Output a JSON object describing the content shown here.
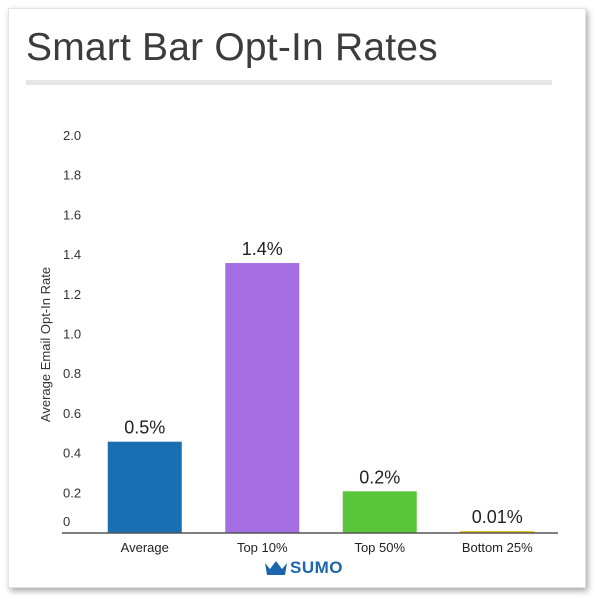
{
  "chart_data": {
    "type": "bar",
    "title": "Smart Bar Opt-In Rates",
    "xlabel": "",
    "ylabel": "Average Email Opt-In Rate",
    "categories": [
      "Average",
      "Top 10%",
      "Top 50%",
      "Bottom 25%"
    ],
    "values": [
      0.46,
      1.36,
      0.21,
      0.01
    ],
    "data_labels": [
      "0.5%",
      "1.4%",
      "0.2%",
      "0.01%"
    ],
    "colors": [
      "#1a6fb2",
      "#a56ee3",
      "#59c63a",
      "#e8c21e"
    ],
    "ylim": [
      0,
      2.0
    ],
    "yticks": [
      "0",
      "0.2",
      "0.4",
      "0.6",
      "0.8",
      "1.0",
      "1.2",
      "1.4",
      "1.6",
      "1.8",
      "2.0"
    ],
    "grid": false,
    "legend": "none"
  },
  "brand": {
    "name": "SUMO",
    "color": "#1b66ad",
    "icon": "crown-icon"
  }
}
